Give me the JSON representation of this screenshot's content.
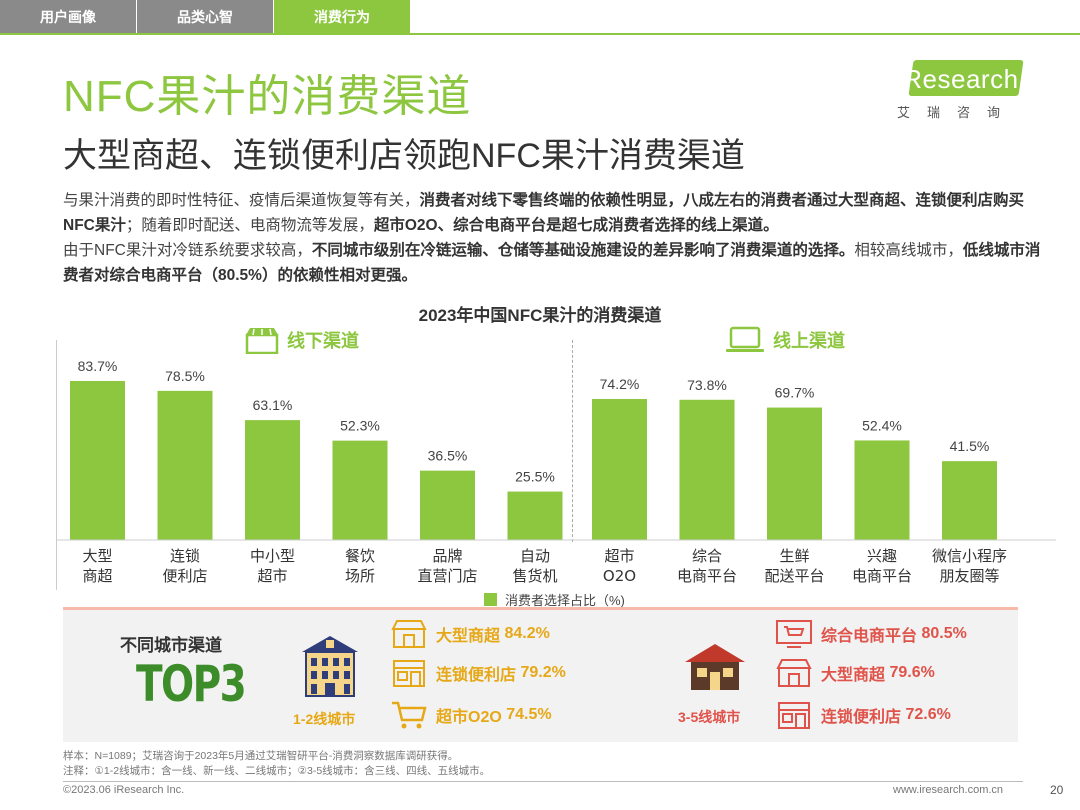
{
  "tabs": [
    {
      "label": "用户画像"
    },
    {
      "label": "品类心智"
    },
    {
      "label": "消费行为"
    }
  ],
  "logo": {
    "brand": "iResearch",
    "sub": "艾瑞咨询"
  },
  "title": "NFC果汁的消费渠道",
  "subtitle": "大型商超、连锁便利店领跑NFC果汁消费渠道",
  "paragraph": {
    "p1a": "与果汁消费的即时性特征、疫情后渠道恢复等有关，",
    "p1b": "消费者对线下零售终端的依赖性明显，八成左右的消费者通过大型商超、连锁便利店购买NFC果汁",
    "p1c": "；随着即时配送、电商物流等发展，",
    "p1d": "超市O2O、综合电商平台是超七成消费者选择的线上渠道。",
    "p2a": "由于NFC果汁对冷链系统要求较高，",
    "p2b": "不同城市级别在冷链运输、仓储等基础设施建设的差异影响了消费渠道的选择。",
    "p2c": "相较高线城市，",
    "p2d": "低线城市消费者对综合电商平台（80.5%）的依赖性相对更强。"
  },
  "chart_data": {
    "type": "bar",
    "title": "2023年中国NFC果汁的消费渠道",
    "groups": [
      {
        "name": "线下渠道",
        "categories": [
          "大型\n商超",
          "连锁\n便利店",
          "中小型\n超市",
          "餐饮\n场所",
          "品牌\n直营门店",
          "自动\n售货机"
        ],
        "values": [
          83.7,
          78.5,
          63.1,
          52.3,
          36.5,
          25.5
        ]
      },
      {
        "name": "线上渠道",
        "categories": [
          "超市\nO2O",
          "综合\n电商平台",
          "生鲜\n配送平台",
          "兴趣\n电商平台",
          "微信小程序\n朋友圈等"
        ],
        "values": [
          74.2,
          73.8,
          69.7,
          52.4,
          41.5
        ]
      }
    ],
    "value_labels": [
      "83.7%",
      "78.5%",
      "63.1%",
      "52.3%",
      "36.5%",
      "25.5%",
      "74.2%",
      "73.8%",
      "69.7%",
      "52.4%",
      "41.5%"
    ],
    "legend": "消费者选择占比（%)",
    "ylim": [
      0,
      100
    ],
    "color": "#8dc63f"
  },
  "cities": {
    "label": "不同城市渠道",
    "top3": "TOP3",
    "tier1": {
      "name": "1-2线城市",
      "items": [
        {
          "name": "大型商超",
          "value": "84.2%"
        },
        {
          "name": "连锁便利店",
          "value": "79.2%"
        },
        {
          "name": "超市O2O",
          "value": "74.5%"
        }
      ],
      "color": "#e6a817"
    },
    "tier2": {
      "name": "3-5线城市",
      "items": [
        {
          "name": "综合电商平台",
          "value": "80.5%"
        },
        {
          "name": "大型商超",
          "value": "79.6%"
        },
        {
          "name": "连锁便利店",
          "value": "72.6%"
        }
      ],
      "color": "#e0534a"
    }
  },
  "notes": {
    "sample": "样本：N=1089；艾瑞咨询于2023年5月通过艾瑞智研平台-消费洞察数据库调研获得。",
    "note": "注释：①1-2线城市：含一线、新一线、二线城市；②3-5线城市：含三线、四线、五线城市。"
  },
  "footer": {
    "copyright": "©2023.06 iResearch Inc.",
    "url": "www.iresearch.com.cn",
    "page": "20"
  }
}
